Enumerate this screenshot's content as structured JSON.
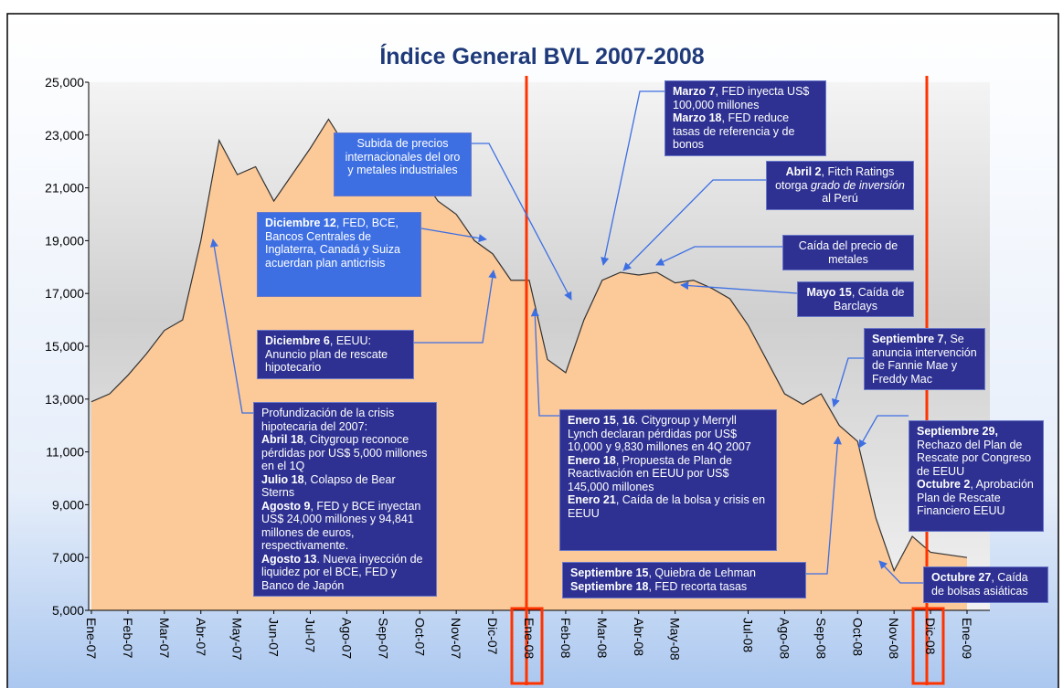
{
  "chart_data": {
    "type": "area",
    "title": "Índice General BVL 2007-2008",
    "categories": [
      "Ene-07",
      null,
      "Feb-07",
      null,
      "Mar-07",
      null,
      "Abr-07",
      null,
      "May-07",
      null,
      "Jun-07",
      null,
      "Jul-07",
      null,
      "Ago-07",
      null,
      "Sep-07",
      null,
      "Oct-07",
      null,
      "Nov-07",
      null,
      "Dic-07",
      null,
      "Ene-08",
      null,
      "Feb-08",
      null,
      "Mar-08",
      null,
      "Abr-08",
      null,
      "May-08",
      null,
      null,
      null,
      "Jul-08",
      null,
      "Ago-08",
      null,
      "Sep-08",
      null,
      "Oct-08",
      null,
      "Nov-08",
      null,
      "Dic-08",
      null,
      "Ene-09"
    ],
    "values": [
      12900,
      13200,
      13900,
      14700,
      15600,
      16000,
      19000,
      22800,
      21500,
      21800,
      20500,
      21500,
      22500,
      23600,
      22500,
      21000,
      22000,
      22500,
      21500,
      20500,
      20000,
      19000,
      18500,
      17500,
      17500,
      14500,
      14000,
      16000,
      17500,
      17800,
      17700,
      17800,
      17400,
      17500,
      17200,
      16800,
      15800,
      14500,
      13200,
      12800,
      13200,
      12000,
      11400,
      8500,
      6500,
      7800,
      7200,
      7100,
      7000
    ],
    "color": "#fcc999",
    "ylim": [
      5000,
      25000
    ],
    "yticks": [
      {
        "value": 5000,
        "label": "5,000"
      },
      {
        "value": 7000,
        "label": "7,000"
      },
      {
        "value": 9000,
        "label": "9,000"
      },
      {
        "value": 11000,
        "label": "11,000"
      },
      {
        "value": 13000,
        "label": "13,000"
      },
      {
        "value": 15000,
        "label": "15,000"
      },
      {
        "value": 17000,
        "label": "17,000"
      },
      {
        "value": 19000,
        "label": "19,000"
      },
      {
        "value": 21000,
        "label": "21,000"
      },
      {
        "value": 23000,
        "label": "23,000"
      },
      {
        "value": 25000,
        "label": "25,000"
      }
    ],
    "annotations": [
      {
        "paragraphs": [
          [
            {
              "text": "Marzo 7",
              "style": "bold"
            },
            ", FED inyecta US$ 100,000 millones"
          ],
          [
            {
              "text": "Marzo 18",
              "style": "bold"
            },
            ", FED reduce tasas de referencia y de bonos"
          ]
        ]
      },
      {
        "paragraphs": [
          [
            "Subida de precios internacionales del oro y metales industriales"
          ]
        ]
      },
      {
        "paragraphs": [
          [
            {
              "text": "Abril 2",
              "style": "bold"
            },
            ", Fitch Ratings otorga ",
            {
              "text": "grado de inversión",
              "style": "italic"
            },
            " al Perú"
          ]
        ]
      },
      {
        "paragraphs": [
          [
            {
              "text": "Diciembre 12",
              "style": "bold"
            },
            ", FED, BCE, Bancos Centrales de Inglaterra, Canadá y Suiza acuerdan plan anticrisis"
          ]
        ]
      },
      {
        "paragraphs": [
          [
            "Caída del precio de metales"
          ]
        ]
      },
      {
        "paragraphs": [
          [
            {
              "text": "Mayo 15",
              "style": "bold"
            },
            ", Caída de Barclays"
          ]
        ]
      },
      {
        "paragraphs": [
          [
            {
              "text": "Diciembre 6",
              "style": "bold"
            },
            ", EEUU: Anuncio plan de rescate hipotecario"
          ]
        ]
      },
      {
        "paragraphs": [
          [
            {
              "text": "Septiembre 7",
              "style": "bold"
            },
            ", Se anuncia intervención de Fannie Mae y Freddy Mac"
          ]
        ]
      },
      {
        "paragraphs": [
          [
            "Profundización de la crisis hipotecaria del 2007:"
          ],
          [
            {
              "text": "Abril 18",
              "style": "bold"
            },
            ", Citygroup reconoce pérdidas por US$ 5,000 millones en el 1Q"
          ],
          [
            {
              "text": "Julio 18",
              "style": "bold"
            },
            ", Colapso de Bear Sterns"
          ],
          [
            {
              "text": "Agosto 9",
              "style": "bold"
            },
            ", FED y BCE inyectan US$ 24,000 millones y 94,841 millones de euros, respectivamente."
          ],
          [
            {
              "text": "Agosto 13",
              "style": "bold"
            },
            ". Nueva inyección de liquidez por el BCE, FED y Banco de Japón"
          ]
        ]
      },
      {
        "paragraphs": [
          [
            {
              "text": "Enero 15",
              "style": "bold"
            },
            ", ",
            {
              "text": "16",
              "style": "bold"
            },
            ". Citygroup y Merryll Lynch declaran pérdidas por US$ 10,000 y 9,830 millones en 4Q 2007"
          ],
          [
            {
              "text": "Enero 18",
              "style": "bold"
            },
            ", Propuesta de Plan de Reactivación en EEUU por US$ 145,000 millones"
          ],
          [
            {
              "text": "Enero 21",
              "style": "bold"
            },
            ", Caída de la bolsa y crisis en EEUU"
          ]
        ]
      },
      {
        "paragraphs": [
          [
            {
              "text": "Septiembre 29,",
              "style": "bold"
            },
            " Rechazo del Plan de Rescate por Congreso de EEUU"
          ],
          [
            {
              "text": "Octubre 2",
              "style": "bold"
            },
            ", Aprobación Plan de Rescate Financiero EEUU"
          ]
        ]
      },
      {
        "paragraphs": [
          [
            {
              "text": "Septiembre 15",
              "style": "bold"
            },
            ", Quiebra de Lehman"
          ],
          [
            {
              "text": "Septiembre 18",
              "style": "bold"
            },
            ", FED recorta tasas"
          ]
        ]
      },
      {
        "paragraphs": [
          [
            {
              "text": "Octubre 27",
              "style": "bold"
            },
            ", Caída de bolsas asiáticas"
          ]
        ]
      }
    ]
  }
}
